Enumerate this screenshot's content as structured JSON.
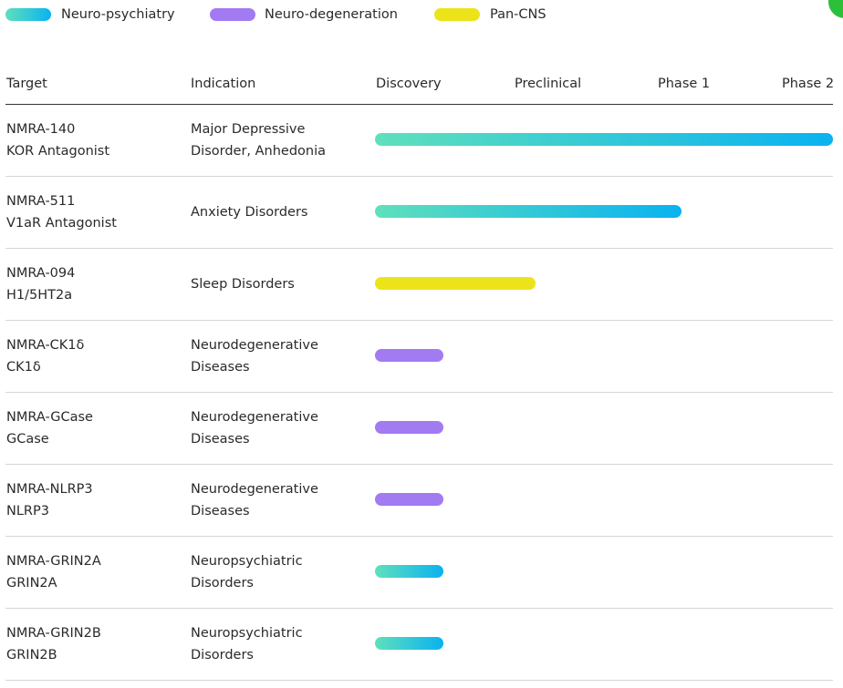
{
  "legend": [
    "Neuro-psychiatry",
    "Neuro-degeneration",
    "Pan-CNS"
  ],
  "header": [
    "Target",
    "Indication",
    "Discovery",
    "Preclinical",
    "Phase 1",
    "Phase 2"
  ],
  "rows": [
    {
      "target": "NMRA-140",
      "mechanism": "KOR Antagonist",
      "indication": [
        "Major Depressive",
        "Disorder, Anhedonia"
      ]
    },
    {
      "target": "NMRA-511",
      "mechanism": "V1aR Antagonist",
      "indication": [
        "Anxiety Disorders"
      ]
    },
    {
      "target": "NMRA-094",
      "mechanism": "H1/5HT2a",
      "indication": [
        "Sleep Disorders"
      ]
    },
    {
      "target": "NMRA-CK1δ",
      "mechanism": "CK1δ",
      "indication": [
        "Neurodegenerative",
        "Diseases"
      ]
    },
    {
      "target": "NMRA-GCase",
      "mechanism": "GCase",
      "indication": [
        "Neurodegenerative",
        "Diseases"
      ]
    },
    {
      "target": "NMRA-NLRP3",
      "mechanism": "NLRP3",
      "indication": [
        "Neurodegenerative",
        "Diseases"
      ]
    },
    {
      "target": "NMRA-GRIN2A",
      "mechanism": "GRIN2A",
      "indication": [
        "Neuropsychiatric",
        "Disorders"
      ]
    },
    {
      "target": "NMRA-GRIN2B",
      "mechanism": "GRIN2B",
      "indication": [
        "Neuropsychiatric",
        "Disorders"
      ]
    }
  ]
}
